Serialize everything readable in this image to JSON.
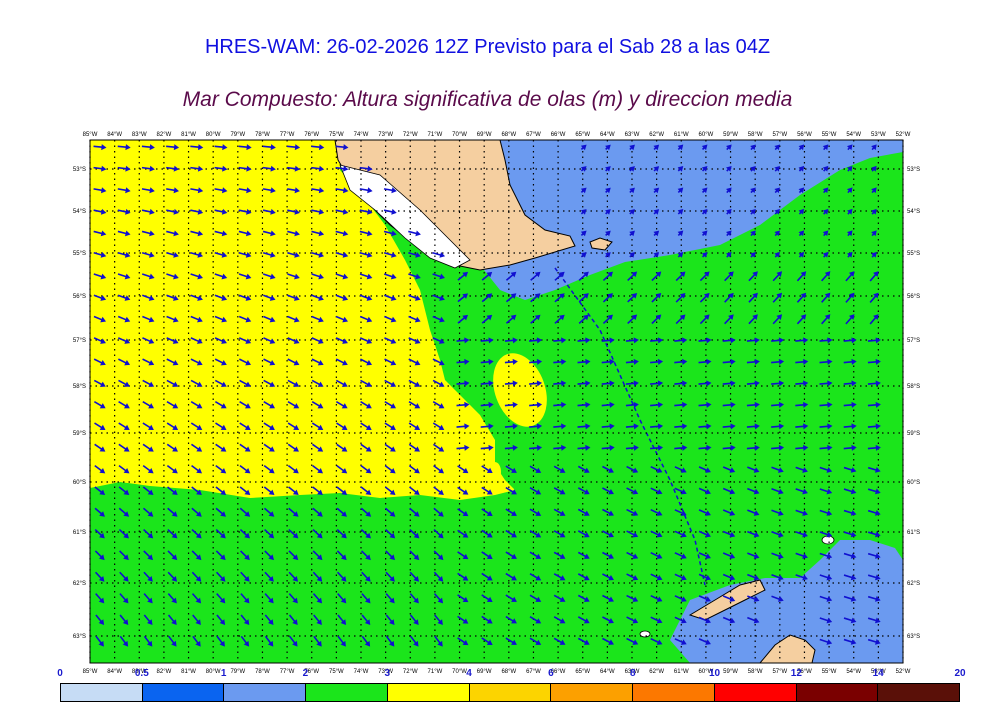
{
  "header": {
    "title": "HRES-WAM: 26-02-2026 12Z Previsto para el Sab 28 a las 04Z",
    "subtitle": "Mar Compuesto: Altura significativa de olas (m) y direccion media"
  },
  "map": {
    "lon_labels": [
      "85°W",
      "84°W",
      "83°W",
      "82°W",
      "81°W",
      "80°W",
      "79°W",
      "78°W",
      "77°W",
      "76°W",
      "75°W",
      "74°W",
      "73°W",
      "72°W",
      "71°W",
      "70°W",
      "69°W",
      "68°W",
      "67°W",
      "66°W",
      "65°W",
      "64°W",
      "63°W",
      "62°W",
      "61°W",
      "60°W",
      "59°W",
      "58°W",
      "57°W",
      "56°W",
      "55°W",
      "54°W",
      "53°W",
      "52°W"
    ],
    "lat_labels": [
      "53°S",
      "54°S",
      "55°S",
      "56°S",
      "57°S",
      "58°S",
      "59°S",
      "60°S",
      "61°S",
      "62°S",
      "63°S"
    ],
    "colors": {
      "yellow": "#ffff00",
      "green": "#1be51b",
      "light_blue": "#6495ed",
      "land": "#f5cfa0",
      "arrow": "#1010d0"
    }
  },
  "colorbar": {
    "ticks": [
      "0",
      "0.5",
      "1",
      "2",
      "3",
      "4",
      "6",
      "8",
      "10",
      "12",
      "14",
      "20"
    ],
    "colors": [
      "#c6dcf5",
      "#0a64f0",
      "#6b9af0",
      "#1be51b",
      "#ffff00",
      "#fcd400",
      "#fca000",
      "#fc7800",
      "#ff0000",
      "#7a0000",
      "#5a1008",
      "#3a3a3a"
    ]
  }
}
